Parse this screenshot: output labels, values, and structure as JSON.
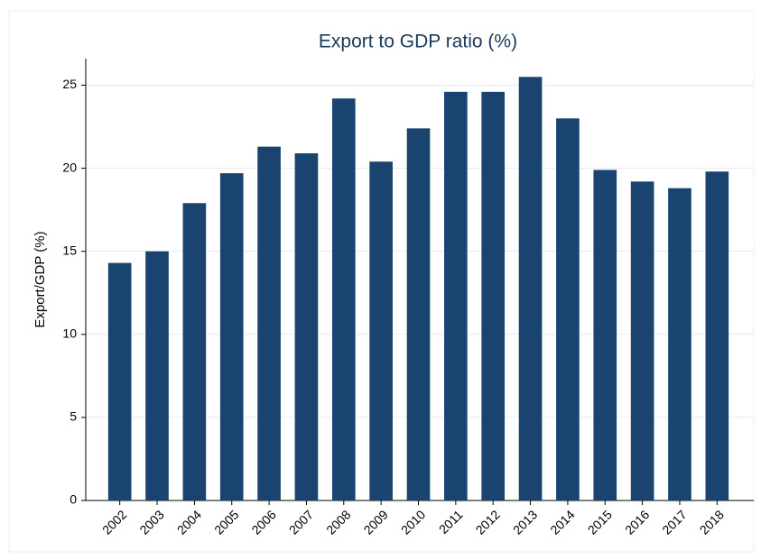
{
  "chart_data": {
    "type": "bar",
    "title": "Export to GDP ratio (%)",
    "y_label": "Export/GDP (%)",
    "categories": [
      "2002",
      "2003",
      "2004",
      "2005",
      "2006",
      "2007",
      "2008",
      "2009",
      "2010",
      "2011",
      "2012",
      "2013",
      "2014",
      "2015",
      "2016",
      "2017",
      "2018"
    ],
    "values": [
      14.3,
      15.0,
      17.9,
      19.7,
      21.3,
      20.9,
      24.2,
      20.4,
      22.4,
      24.6,
      24.6,
      25.5,
      23.0,
      19.9,
      19.2,
      18.8,
      19.8
    ],
    "color": "#1a4470",
    "ylim": [
      0,
      26.6
    ],
    "yticks": [
      0,
      5,
      10,
      15,
      20,
      25
    ],
    "grid": true
  }
}
